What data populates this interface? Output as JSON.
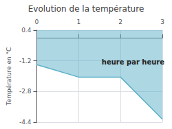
{
  "chart_data": {
    "type": "line",
    "title": "Evolution de la température",
    "ylabel": "Température en °C",
    "x": [
      0,
      1,
      2,
      3
    ],
    "values": [
      -1.4,
      -2.05,
      -2.05,
      -4.25
    ],
    "color": "#5ab0c8",
    "fill_to": 0.4,
    "xlim": [
      0,
      3
    ],
    "ylim": [
      -4.4,
      0.4
    ],
    "xticks": [
      0,
      1,
      2,
      3
    ],
    "yticks": [
      0.4,
      -1.2,
      -2.8,
      -4.4
    ],
    "grid": true,
    "annotations": [
      {
        "text": "heure par heure",
        "x": 1.55,
        "y": -1.1
      }
    ]
  }
}
